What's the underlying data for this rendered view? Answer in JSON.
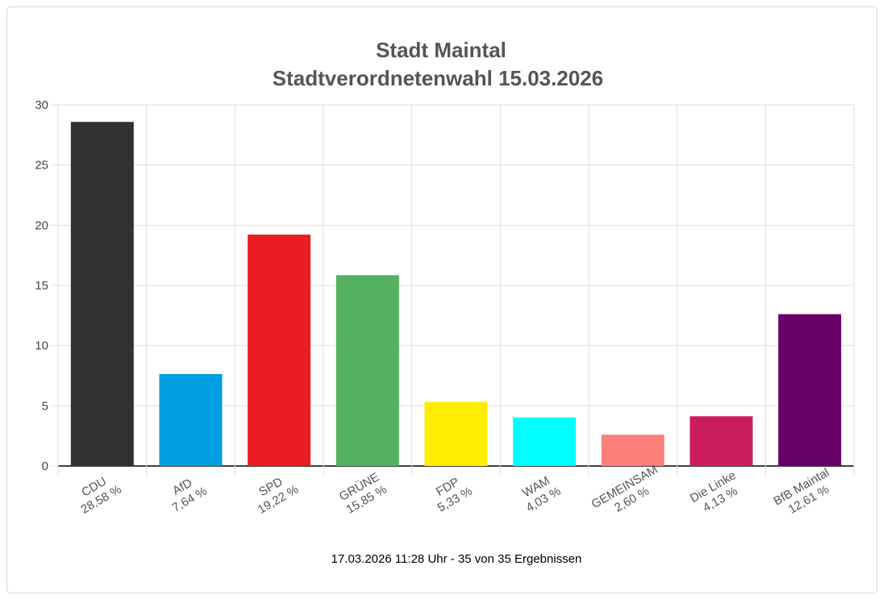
{
  "chart_data": {
    "type": "bar",
    "title": "Stadt Maintal",
    "subtitle": "Stadtverordnetenwahl 15.03.2026",
    "categories": [
      "CDU",
      "AfD",
      "SPD",
      "GRÜNE",
      "FDP",
      "WAM",
      "GEMEINSAM",
      "Die Linke",
      "BfB Maintal"
    ],
    "labels": [
      "28,58 %",
      "7,64 %",
      "19,22 %",
      "15,85 %",
      "5,33 %",
      "4,03 %",
      "2,60 %",
      "4,13 %",
      "12,61 %"
    ],
    "values": [
      28.58,
      7.64,
      19.22,
      15.85,
      5.33,
      4.03,
      2.6,
      4.13,
      12.61
    ],
    "colors": [
      "#333132",
      "#009ee0",
      "#eb1c24",
      "#54b062",
      "#ffed00",
      "#00ffff",
      "#fd7f7c",
      "#cb1d5b",
      "#660066"
    ],
    "ylim": [
      0,
      30
    ],
    "yticks": [
      "0",
      "5",
      "10",
      "15",
      "20",
      "25",
      "30"
    ],
    "grid": true,
    "footer": "17.03.2026 11:28 Uhr - 35 von 35 Ergebnissen"
  }
}
